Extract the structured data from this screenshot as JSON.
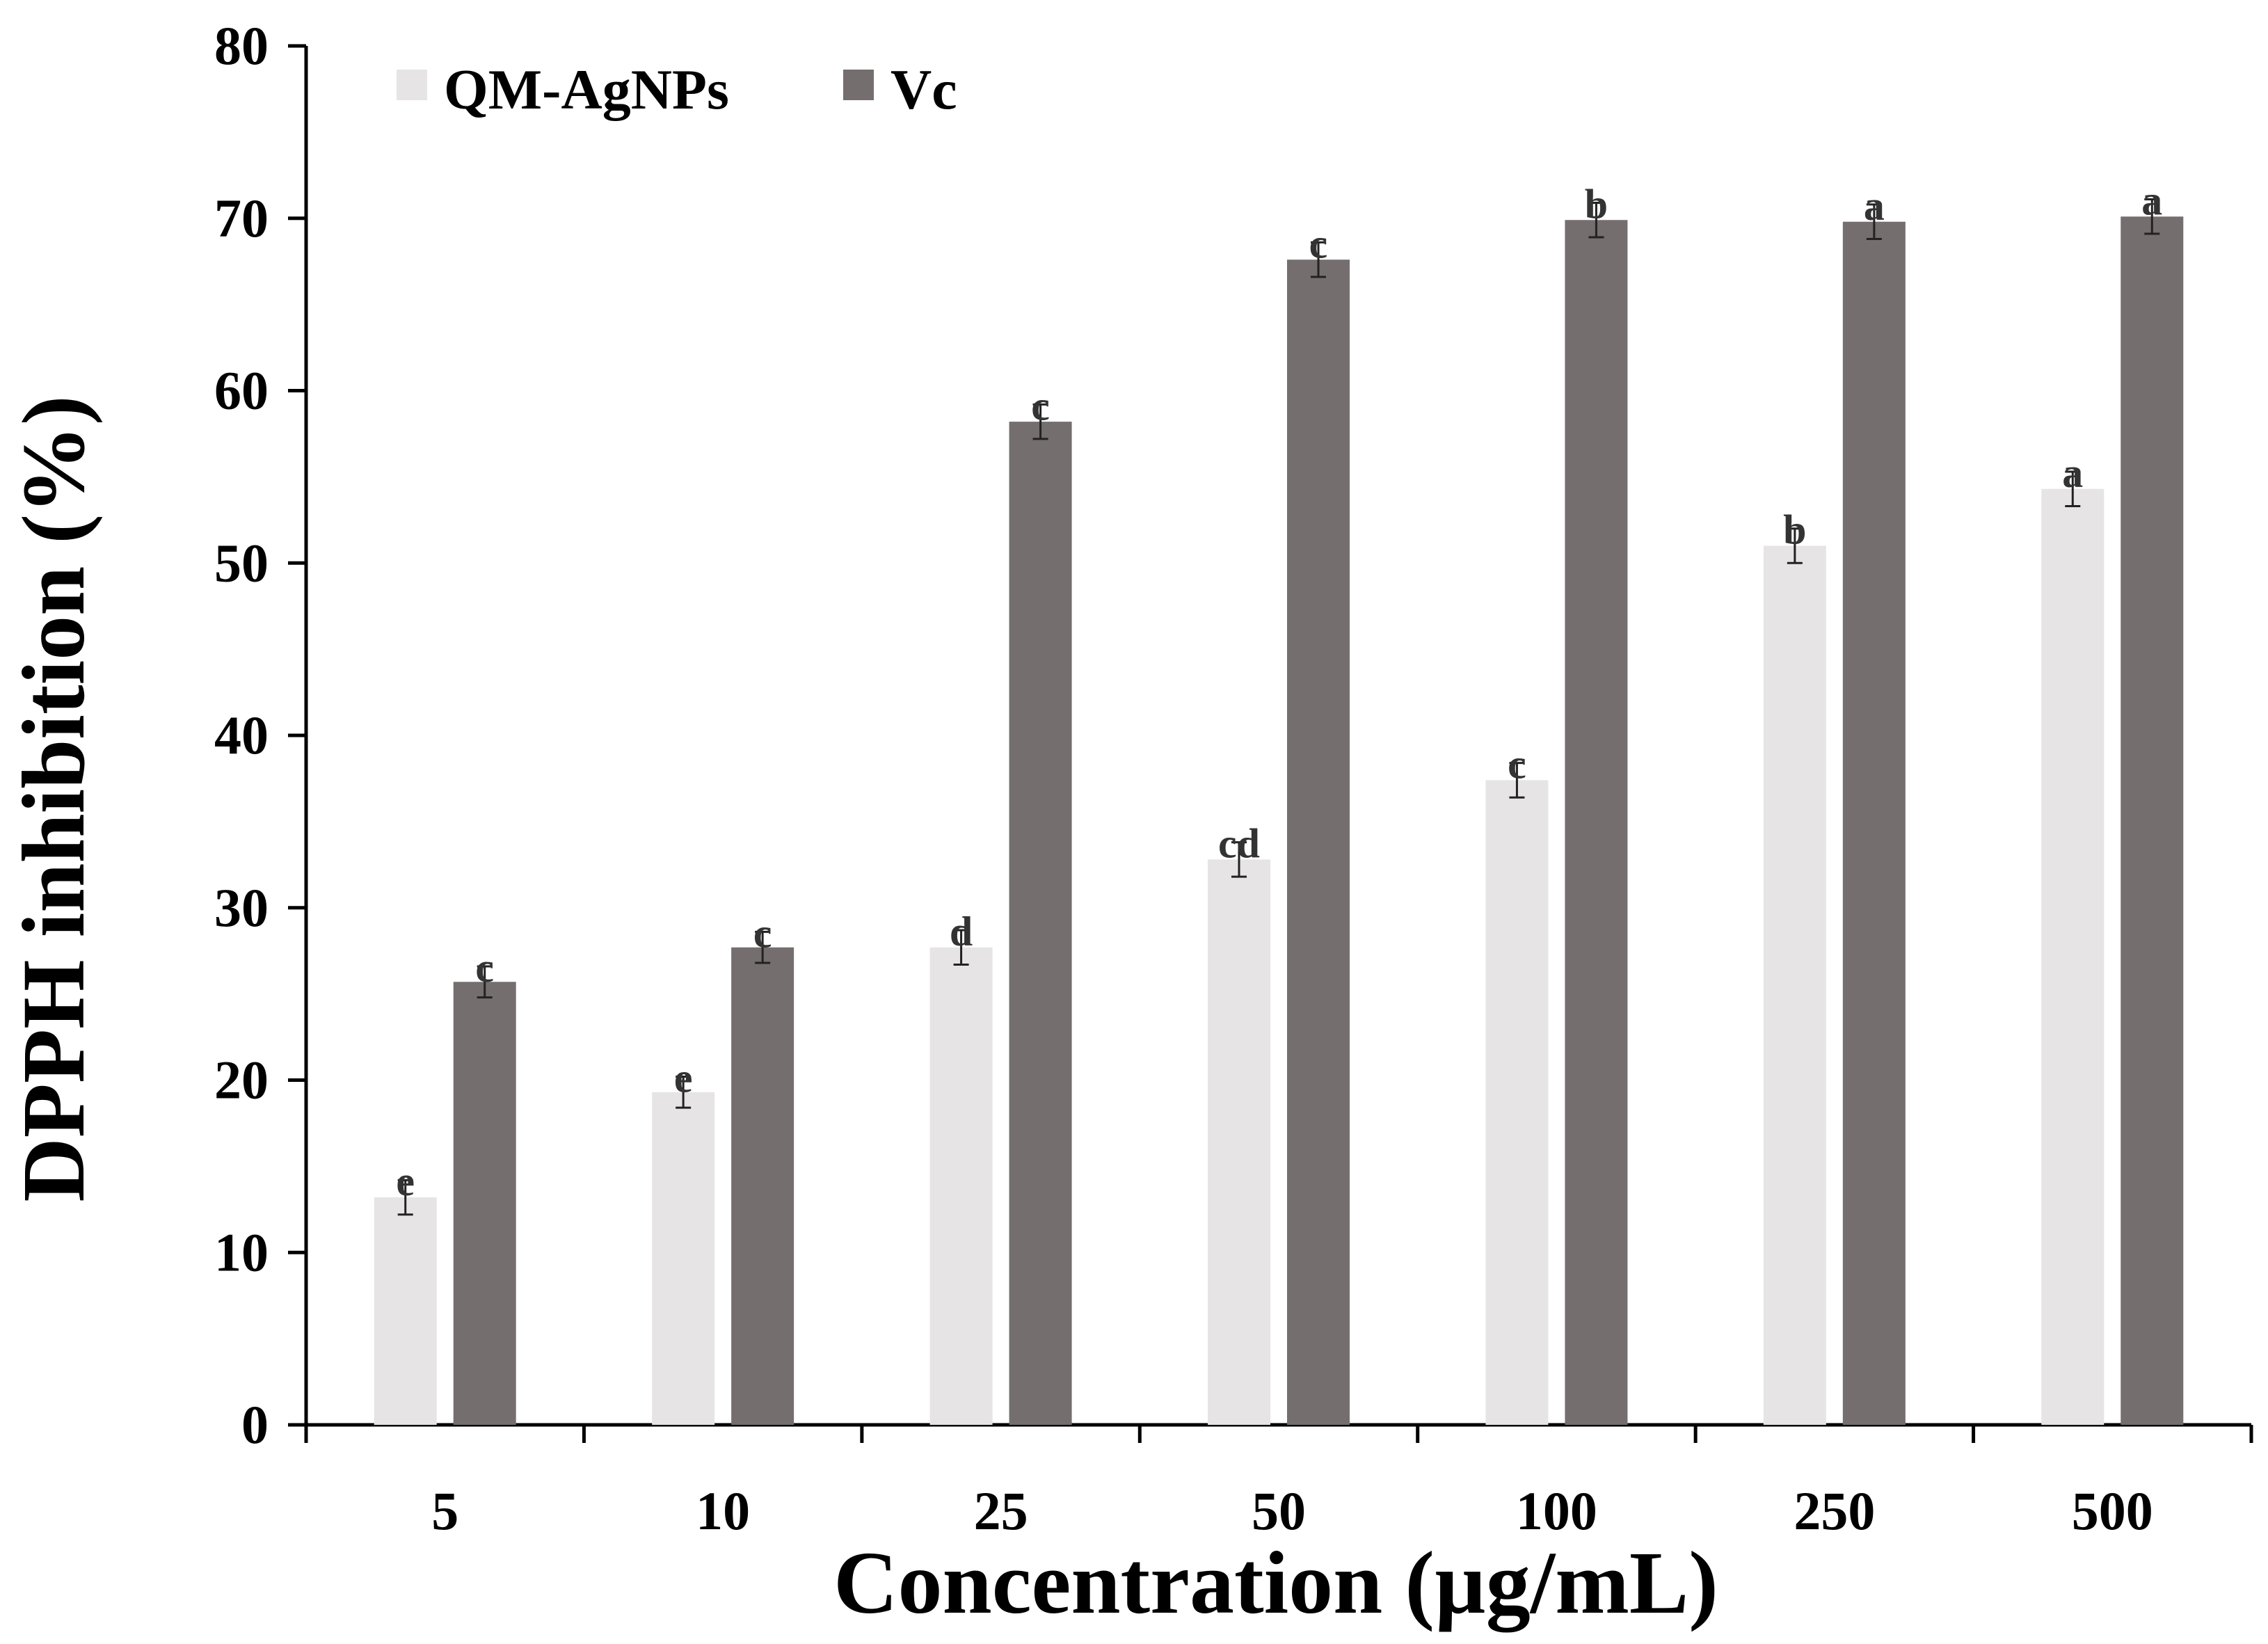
{
  "chart_data": {
    "type": "bar",
    "title": "",
    "xlabel": "Concentration (µg/mL)",
    "ylabel": "DPPH inhibition (%)",
    "ylim": [
      0,
      80
    ],
    "yticks": [
      "0",
      "10",
      "20",
      "30",
      "40",
      "50",
      "60",
      "70",
      "80"
    ],
    "categories": [
      "5",
      "10",
      "25",
      "50",
      "100",
      "250",
      "500"
    ],
    "legend_position": "top-left",
    "series": [
      {
        "name": "QM-AgNPs",
        "color": "#e6e4e4",
        "values": [
          13.2,
          19.3,
          27.7,
          32.8,
          37.4,
          51.0,
          54.3
        ],
        "errors": [
          1.0,
          0.9,
          1.0,
          1.0,
          1.0,
          1.0,
          1.0
        ],
        "labels": [
          "e",
          "e",
          "d",
          "cd",
          "c",
          "b",
          "a"
        ]
      },
      {
        "name": "Vc",
        "color": "#746e6e",
        "values": [
          25.7,
          27.7,
          58.2,
          67.6,
          69.9,
          69.8,
          70.1
        ],
        "errors": [
          0.9,
          0.9,
          1.0,
          1.0,
          1.0,
          1.0,
          1.0
        ],
        "labels": [
          "c",
          "c",
          "c",
          "c",
          "b",
          "a",
          "a"
        ]
      }
    ]
  }
}
